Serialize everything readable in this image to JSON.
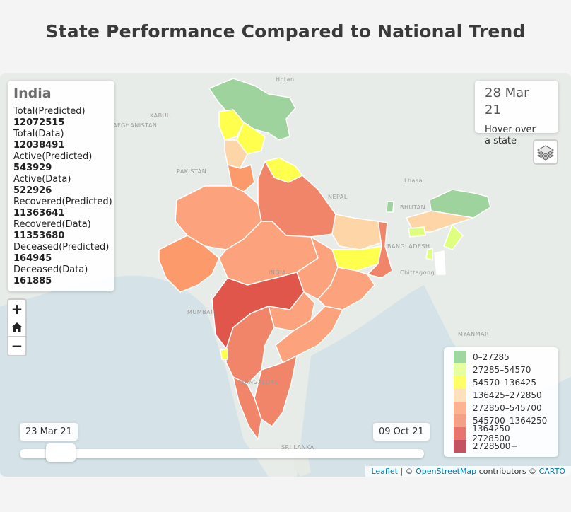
{
  "title": "State Performance Compared to National Trend",
  "info": {
    "country": "India",
    "stats": [
      {
        "label": "Total(Predicted)",
        "value": "12072515"
      },
      {
        "label": "Total(Data)",
        "value": "12038491"
      },
      {
        "label": "Active(Predicted)",
        "value": "543929"
      },
      {
        "label": "Active(Data)",
        "value": "522926"
      },
      {
        "label": "Recovered(Predicted)",
        "value": "11363641"
      },
      {
        "label": "Recovered(Data)",
        "value": "11353680"
      },
      {
        "label": "Deceased(Predicted)",
        "value": "164945"
      },
      {
        "label": "Deceased(Data)",
        "value": "161885"
      }
    ]
  },
  "date_box": {
    "date": "28 Mar 21",
    "hint": "Hover over a state"
  },
  "zoom": {
    "in": "+",
    "out": "−"
  },
  "legend": [
    {
      "label": "0–27285",
      "color": "#7fc97f"
    },
    {
      "label": "27285–54570",
      "color": "#dfff7f"
    },
    {
      "label": "54570–136425",
      "color": "#ffff33"
    },
    {
      "label": "136425–272850",
      "color": "#fdd5a6"
    },
    {
      "label": "272850–545700",
      "color": "#fc9a6c"
    },
    {
      "label": "545700–1364250",
      "color": "#f0805f"
    },
    {
      "label": "1364250–2728500",
      "color": "#e0473c"
    },
    {
      "label": "2728500+",
      "color": "#b2182b"
    }
  ],
  "slider": {
    "start": "23 Mar 21",
    "end": "09 Oct 21",
    "position": 0.05
  },
  "attribution": {
    "leaflet": "Leaflet",
    "sep1": " | © ",
    "osm": "OpenStreetMap",
    "mid": " contributors © ",
    "carto": "CARTO"
  },
  "places": [
    "Hotan",
    "KABUL",
    "AFGHANISTAN",
    "PAKISTAN",
    "NEPAL",
    "BHUTAN",
    "BANGLADESH",
    "INDIA",
    "MUMBAI",
    "BANGALORE",
    "SRI LANKA",
    "MYANMAR",
    "Lhasa",
    "Chittagong"
  ]
}
